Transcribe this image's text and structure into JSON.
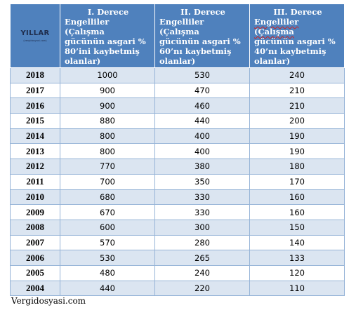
{
  "table": {
    "year_header": {
      "title": "YILLAR",
      "watermark": "(vergidosyasi.com)"
    },
    "columns": [
      {
        "line1": "I. Derece",
        "line2": "Engelliler (Çalışma",
        "line3": "gücünün asgari %",
        "line4": "80’ini kaybetmiş",
        "line5": "olanlar)"
      },
      {
        "line1": "II. Derece",
        "line2": "Engelliler (Çalışma",
        "line3": "gücünün asgari %",
        "line4": "60’nı kaybetmiş",
        "line5": "olanlar)"
      },
      {
        "line1": "III. Derece",
        "line2": "Engelliler (Çalışma",
        "line3": "gücünün asgari %",
        "line4": "40’nı kaybetmiş",
        "line5": "olanlar)"
      }
    ],
    "rows": [
      {
        "year": "2018",
        "deg1": "1000",
        "deg2": "530",
        "deg3": "240"
      },
      {
        "year": "2017",
        "deg1": "900",
        "deg2": "470",
        "deg3": "210"
      },
      {
        "year": "2016",
        "deg1": "900",
        "deg2": "460",
        "deg3": "210"
      },
      {
        "year": "2015",
        "deg1": "880",
        "deg2": "440",
        "deg3": "200"
      },
      {
        "year": "2014",
        "deg1": "800",
        "deg2": "400",
        "deg3": "190"
      },
      {
        "year": "2013",
        "deg1": "800",
        "deg2": "400",
        "deg3": "190"
      },
      {
        "year": "2012",
        "deg1": "770",
        "deg2": "380",
        "deg3": "180"
      },
      {
        "year": "2011",
        "deg1": "700",
        "deg2": "350",
        "deg3": "170"
      },
      {
        "year": "2010",
        "deg1": "680",
        "deg2": "330",
        "deg3": "160"
      },
      {
        "year": "2009",
        "deg1": "670",
        "deg2": "330",
        "deg3": "160"
      },
      {
        "year": "2008",
        "deg1": "600",
        "deg2": "300",
        "deg3": "150"
      },
      {
        "year": "2007",
        "deg1": "570",
        "deg2": "280",
        "deg3": "140"
      },
      {
        "year": "2006",
        "deg1": "530",
        "deg2": "265",
        "deg3": "133"
      },
      {
        "year": "2005",
        "deg1": "480",
        "deg2": "240",
        "deg3": "120"
      },
      {
        "year": "2004",
        "deg1": "440",
        "deg2": "220",
        "deg3": "110"
      }
    ]
  },
  "source": "Vergidosyasi.com",
  "colors": {
    "header_bg": "#4f81bd",
    "band_row": "#dbe5f1",
    "grid_line": "#95b3d7"
  }
}
